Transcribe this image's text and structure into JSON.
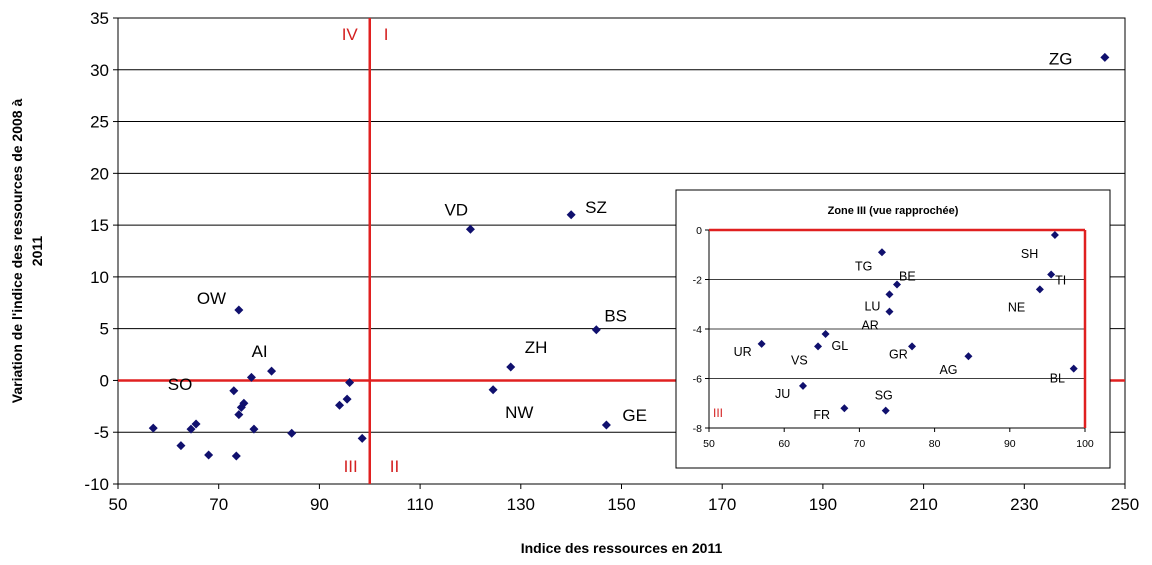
{
  "chart_data": [
    {
      "type": "scatter",
      "title": "",
      "xlabel": "Indice des ressources en 2011",
      "ylabel_lines": [
        "Variation de l'indice des ressources de 2008 à",
        "2011"
      ],
      "xlim": [
        50,
        250
      ],
      "ylim": [
        -10,
        35
      ],
      "xticks": [
        50,
        70,
        90,
        110,
        130,
        150,
        170,
        190,
        210,
        230,
        250
      ],
      "yticks": [
        -10,
        -5,
        0,
        5,
        10,
        15,
        20,
        25,
        30,
        35
      ],
      "grid": "horizontal",
      "reference_lines": {
        "x": 100,
        "y": 0,
        "color": "#e02020"
      },
      "quadrants": [
        "I",
        "II",
        "III",
        "IV"
      ],
      "marker_color": "#10106e",
      "points": [
        {
          "label": "ZG",
          "x": 246,
          "y": 31.2
        },
        {
          "label": "SZ",
          "x": 140,
          "y": 16.0
        },
        {
          "label": "VD",
          "x": 120,
          "y": 14.6
        },
        {
          "label": "BS",
          "x": 145,
          "y": 4.9
        },
        {
          "label": "ZH",
          "x": 128,
          "y": 1.3
        },
        {
          "label": "NW",
          "x": 124.5,
          "y": -0.9
        },
        {
          "label": "GE",
          "x": 147,
          "y": -4.3
        },
        {
          "label": "OW",
          "x": 74,
          "y": 6.8
        },
        {
          "label": "AI",
          "x": 80.5,
          "y": 0.9
        },
        {
          "label": "SO",
          "x": 73,
          "y": -1.0
        },
        {
          "label": "",
          "x": 76.5,
          "y": 0.3
        },
        {
          "label": "",
          "x": 96,
          "y": -0.2
        },
        {
          "label": "",
          "x": 95.5,
          "y": -1.8
        },
        {
          "label": "",
          "x": 94,
          "y": -2.4
        },
        {
          "label": "",
          "x": 98.5,
          "y": -5.6
        },
        {
          "label": "",
          "x": 57,
          "y": -4.6
        },
        {
          "label": "",
          "x": 62.5,
          "y": -6.3
        },
        {
          "label": "",
          "x": 64.5,
          "y": -4.7
        },
        {
          "label": "",
          "x": 65.5,
          "y": -4.2
        },
        {
          "label": "",
          "x": 68,
          "y": -7.2
        },
        {
          "label": "",
          "x": 73.5,
          "y": -7.3
        },
        {
          "label": "",
          "x": 74,
          "y": -3.3
        },
        {
          "label": "",
          "x": 74.5,
          "y": -2.6
        },
        {
          "label": "",
          "x": 75,
          "y": -2.2
        },
        {
          "label": "",
          "x": 77,
          "y": -4.7
        },
        {
          "label": "",
          "x": 84.5,
          "y": -5.1
        }
      ]
    },
    {
      "type": "scatter",
      "title": "Zone III (vue rapprochée)",
      "xlim": [
        50,
        100
      ],
      "ylim": [
        -8,
        0
      ],
      "xticks": [
        50,
        60,
        70,
        80,
        90,
        100
      ],
      "yticks": [
        0,
        -2,
        -4,
        -6,
        -8
      ],
      "grid": "horizontal",
      "quadrant_label": "III",
      "points": [
        {
          "label": "SH",
          "x": 96,
          "y": -0.2
        },
        {
          "label": "TG",
          "x": 73,
          "y": -0.9
        },
        {
          "label": "TI",
          "x": 95.5,
          "y": -1.8
        },
        {
          "label": "BE",
          "x": 75,
          "y": -2.2
        },
        {
          "label": "NE",
          "x": 94,
          "y": -2.4
        },
        {
          "label": "LU",
          "x": 74,
          "y": -2.6
        },
        {
          "label": "AR",
          "x": 74,
          "y": -3.3
        },
        {
          "label": "GL",
          "x": 65.5,
          "y": -4.2
        },
        {
          "label": "UR",
          "x": 57,
          "y": -4.6
        },
        {
          "label": "VS",
          "x": 64.5,
          "y": -4.7
        },
        {
          "label": "GR",
          "x": 77,
          "y": -4.7
        },
        {
          "label": "AG",
          "x": 84.5,
          "y": -5.1
        },
        {
          "label": "BL",
          "x": 98.5,
          "y": -5.6
        },
        {
          "label": "JU",
          "x": 62.5,
          "y": -6.3
        },
        {
          "label": "FR",
          "x": 68,
          "y": -7.2
        },
        {
          "label": "SG",
          "x": 73.5,
          "y": -7.3
        }
      ]
    }
  ]
}
